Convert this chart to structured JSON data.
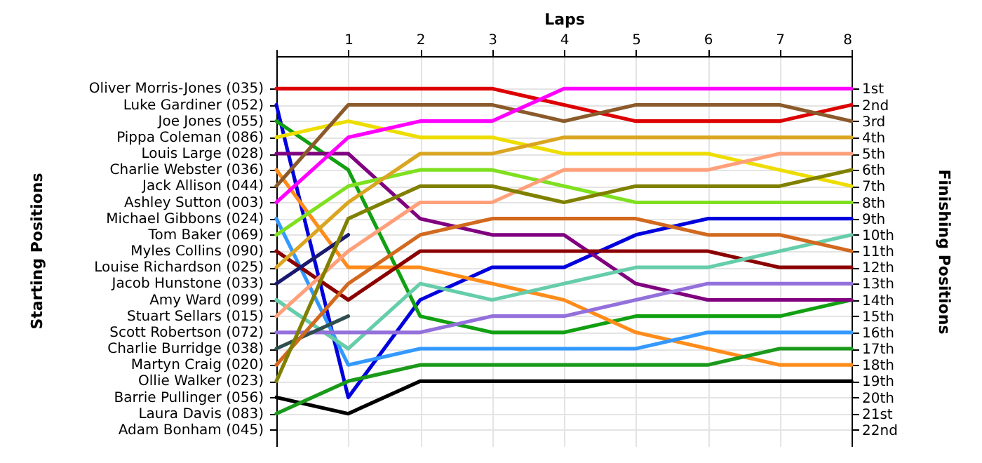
{
  "chart_data": {
    "type": "line",
    "xlabel": "Laps",
    "y2label": "Finishing Positions",
    "x": [
      0,
      1,
      2,
      3,
      4,
      5,
      6,
      7,
      8
    ],
    "xlim": [
      0,
      8
    ],
    "xticks": [
      {
        "value": 0,
        "label": null
      },
      1,
      2,
      3,
      4,
      5,
      6,
      7,
      8
    ],
    "ylim": [
      23,
      -1
    ],
    "yticks": [
      {
        "value": 1,
        "label": "1st"
      },
      {
        "value": 2,
        "label": "2nd"
      },
      {
        "value": 3,
        "label": "3rd"
      },
      {
        "value": 4,
        "label": "4th"
      },
      {
        "value": 5,
        "label": "5th"
      },
      {
        "value": 6,
        "label": "6th"
      },
      {
        "value": 7,
        "label": "7th"
      },
      {
        "value": 8,
        "label": "8th"
      },
      {
        "value": 9,
        "label": "9th"
      },
      {
        "value": 10,
        "label": "10th"
      },
      {
        "value": 11,
        "label": "11th"
      },
      {
        "value": 12,
        "label": "12th"
      },
      {
        "value": 13,
        "label": "13th"
      },
      {
        "value": 14,
        "label": "14th"
      },
      {
        "value": 15,
        "label": "15th"
      },
      {
        "value": 16,
        "label": "16th"
      },
      {
        "value": 17,
        "label": "17th"
      },
      {
        "value": 18,
        "label": "18th"
      },
      {
        "value": 19,
        "label": "19th"
      },
      {
        "value": 20,
        "label": "20th"
      },
      {
        "value": 21,
        "label": "21st"
      },
      {
        "value": 22,
        "label": "22nd"
      }
    ],
    "annotations": [
      "Starting Positions",
      "Oliver Morris-Jones (035)",
      "Luke Gardiner (052)",
      "Joe Jones (055)",
      "Pippa Coleman (086)",
      "Louis Large (028)",
      "Charlie Webster (036)",
      "Jack Allison (044)",
      "Ashley Sutton (003)",
      "Michael Gibbons (024)",
      "Tom Baker (069)",
      "Myles Collins (090)",
      "Louise Richardson (025)",
      "Jacob Hunstone (033)",
      "Amy Ward (099)",
      "Stuart Sellars (015)",
      "Scott Robertson (072)",
      "Charlie Burridge (038)",
      "Martyn Craig (020)",
      "Ollie Walker (023)",
      "Barrie Pullinger (056)",
      "Laura Davis (083)",
      "Adam Bonham (045)"
    ],
    "grid": true,
    "series": [
      {
        "color": "#dd0000",
        "values": [
          1,
          1,
          1,
          1,
          2,
          3,
          3,
          3,
          2
        ]
      },
      {
        "color": "#0000dd",
        "values": [
          2,
          20,
          14,
          12,
          12,
          10,
          9,
          9,
          9
        ]
      },
      {
        "color": "#11a011",
        "values": [
          3,
          6,
          15,
          16,
          16,
          15,
          15,
          15,
          14
        ]
      },
      {
        "color": "#eedd00",
        "values": [
          4,
          3,
          4,
          4,
          5,
          5,
          5,
          6,
          7
        ]
      },
      {
        "color": "#800080",
        "values": [
          5,
          5,
          9,
          10,
          10,
          13,
          14,
          14,
          14
        ]
      },
      {
        "color": "#ff8c1a",
        "values": [
          6,
          12,
          12,
          13,
          14,
          16,
          17,
          18,
          18
        ]
      },
      {
        "color": "#8b5a2b",
        "values": [
          7,
          2,
          2,
          2,
          3,
          2,
          2,
          2,
          3
        ]
      },
      {
        "color": "#ff00ff",
        "values": [
          8,
          4,
          3,
          3,
          1,
          1,
          1,
          1,
          1
        ]
      },
      {
        "color": "#3399ff",
        "values": [
          9,
          18,
          17,
          17,
          17,
          17,
          16,
          16,
          16
        ]
      },
      {
        "color": "#7fe020",
        "values": [
          10,
          7,
          6,
          6,
          7,
          8,
          8,
          8,
          8
        ]
      },
      {
        "color": "#8b0000",
        "values": [
          11,
          14,
          11,
          11,
          11,
          11,
          11,
          12,
          12
        ]
      },
      {
        "color": "#daa520",
        "values": [
          12,
          8,
          5,
          5,
          4,
          4,
          4,
          4,
          4
        ]
      },
      {
        "color": "#191970",
        "values": [
          13,
          10,
          null,
          null,
          null,
          null,
          null,
          null,
          null
        ]
      },
      {
        "color": "#66cdaa",
        "values": [
          14,
          17,
          13,
          14,
          13,
          12,
          12,
          11,
          10
        ]
      },
      {
        "color": "#ffa07a",
        "values": [
          15,
          11,
          8,
          8,
          6,
          6,
          6,
          5,
          5
        ]
      },
      {
        "color": "#9370db",
        "values": [
          16,
          16,
          16,
          15,
          15,
          14,
          13,
          13,
          13
        ]
      },
      {
        "color": "#2f4f4f",
        "values": [
          17,
          15,
          null,
          null,
          null,
          null,
          null,
          null,
          null
        ]
      },
      {
        "color": "#d2691e",
        "values": [
          18,
          13,
          10,
          9,
          9,
          9,
          10,
          10,
          11
        ]
      },
      {
        "color": "#808000",
        "values": [
          19,
          9,
          7,
          7,
          8,
          7,
          7,
          7,
          6
        ]
      },
      {
        "color": "#000000",
        "values": [
          20,
          21,
          19,
          19,
          19,
          19,
          19,
          19,
          19
        ]
      },
      {
        "color": "#1a9a1a",
        "values": [
          21,
          19,
          18,
          18,
          18,
          18,
          18,
          17,
          17
        ]
      }
    ]
  }
}
